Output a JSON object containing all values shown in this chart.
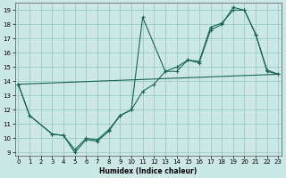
{
  "xlabel": "Humidex (Indice chaleur)",
  "bg_color": "#cce8e4",
  "grid_color": "#99cccc",
  "line_color": "#1a6655",
  "ylim": [
    8.8,
    19.5
  ],
  "yticks": [
    9,
    10,
    11,
    12,
    13,
    14,
    15,
    16,
    17,
    18,
    19
  ],
  "xticks": [
    0,
    1,
    2,
    3,
    4,
    5,
    6,
    7,
    8,
    9,
    10,
    11,
    12,
    13,
    14,
    15,
    16,
    17,
    18,
    19,
    20,
    21,
    22,
    23
  ],
  "xlim": [
    -0.3,
    23.3
  ],
  "line1_x": [
    0,
    1,
    3,
    4,
    5,
    6,
    7,
    8,
    9,
    10,
    11,
    13,
    14,
    15,
    16,
    17,
    18,
    19,
    20,
    21,
    22,
    23
  ],
  "line1_y": [
    13.8,
    11.6,
    10.3,
    10.2,
    9.0,
    9.9,
    9.8,
    10.5,
    11.6,
    12.0,
    18.5,
    14.7,
    14.7,
    15.5,
    15.3,
    17.6,
    18.0,
    19.2,
    19.0,
    17.3,
    14.7,
    14.5
  ],
  "line2_x": [
    0,
    1,
    3,
    4,
    5,
    6,
    7,
    8,
    9,
    10,
    11,
    12,
    13,
    14,
    15,
    16,
    17,
    18,
    19,
    20,
    21,
    22,
    23
  ],
  "line2_y": [
    13.8,
    11.6,
    10.3,
    10.2,
    9.2,
    10.0,
    9.9,
    10.6,
    11.6,
    12.0,
    13.3,
    13.8,
    14.7,
    15.0,
    15.5,
    15.4,
    17.8,
    18.1,
    19.0,
    19.0,
    17.3,
    14.8,
    14.5
  ],
  "line3_x": [
    0,
    23
  ],
  "line3_y": [
    13.8,
    14.5
  ]
}
